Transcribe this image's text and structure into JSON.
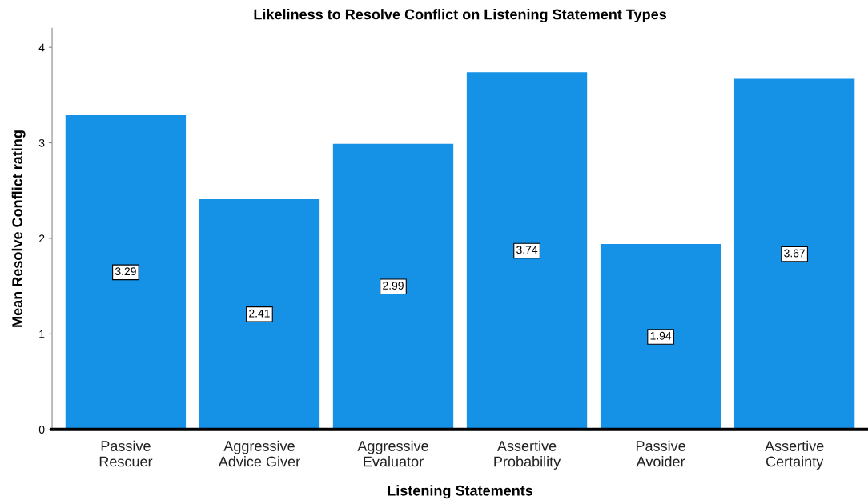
{
  "chart_data": {
    "type": "bar",
    "title": "Likeliness to Resolve Conflict on Listening Statement Types",
    "xlabel": "Listening Statements",
    "ylabel": "Mean Resolve Conflict rating",
    "categories": [
      "Passive\nRescuer",
      "Aggressive\nAdvice Giver",
      "Aggressive\nEvaluator",
      "Assertive\nProbability",
      "Passive\nAvoider",
      "Assertive\nCertainty"
    ],
    "values": [
      3.29,
      2.41,
      2.99,
      3.74,
      1.94,
      3.67
    ],
    "color": "#1591e6",
    "ylim": [
      0,
      4.2
    ],
    "yticks": [
      0,
      1,
      2,
      3,
      4
    ],
    "grid": false,
    "data_labels": true
  }
}
